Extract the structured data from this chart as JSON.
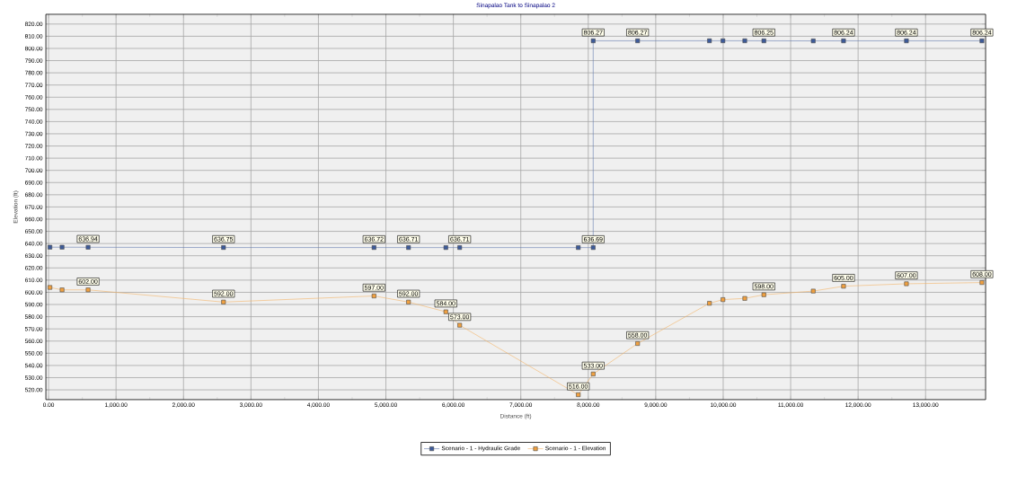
{
  "chart_data": {
    "type": "line",
    "title": "Sinapalao Tank to Sinapalao 2",
    "xlabel": "Distance (ft)",
    "ylabel": "Elevation (ft)",
    "xlim": [
      -40,
      13890
    ],
    "ylim": [
      512,
      828
    ],
    "xticks": [
      {
        "value": 0,
        "label": "0.00"
      },
      {
        "value": 1000,
        "label": "1,000.00"
      },
      {
        "value": 2000,
        "label": "2,000.00"
      },
      {
        "value": 3000,
        "label": "3,000.00"
      },
      {
        "value": 4000,
        "label": "4,000.00"
      },
      {
        "value": 5000,
        "label": "5,000.00"
      },
      {
        "value": 6000,
        "label": "6,000.00"
      },
      {
        "value": 7000,
        "label": "7,000.00"
      },
      {
        "value": 8000,
        "label": "8,000.00"
      },
      {
        "value": 9000,
        "label": "9,000.00"
      },
      {
        "value": 10000,
        "label": "10,000.00"
      },
      {
        "value": 11000,
        "label": "11,000.00"
      },
      {
        "value": 12000,
        "label": "12,000.00"
      },
      {
        "value": 13000,
        "label": "13,000.00"
      }
    ],
    "yticks": [
      {
        "value": 520,
        "label": "520.00"
      },
      {
        "value": 530,
        "label": "530.00"
      },
      {
        "value": 540,
        "label": "540.00"
      },
      {
        "value": 550,
        "label": "550.00"
      },
      {
        "value": 560,
        "label": "560.00"
      },
      {
        "value": 570,
        "label": "570.00"
      },
      {
        "value": 580,
        "label": "580.00"
      },
      {
        "value": 590,
        "label": "590.00"
      },
      {
        "value": 600,
        "label": "600.00"
      },
      {
        "value": 610,
        "label": "610.00"
      },
      {
        "value": 620,
        "label": "620.00"
      },
      {
        "value": 630,
        "label": "630.00"
      },
      {
        "value": 640,
        "label": "640.00"
      },
      {
        "value": 650,
        "label": "650.00"
      },
      {
        "value": 660,
        "label": "660.00"
      },
      {
        "value": 670,
        "label": "670.00"
      },
      {
        "value": 680,
        "label": "680.00"
      },
      {
        "value": 690,
        "label": "690.00"
      },
      {
        "value": 700,
        "label": "700.00"
      },
      {
        "value": 710,
        "label": "710.00"
      },
      {
        "value": 720,
        "label": "720.00"
      },
      {
        "value": 730,
        "label": "730.00"
      },
      {
        "value": 740,
        "label": "740.00"
      },
      {
        "value": 750,
        "label": "750.00"
      },
      {
        "value": 760,
        "label": "760.00"
      },
      {
        "value": 770,
        "label": "770.00"
      },
      {
        "value": 780,
        "label": "780.00"
      },
      {
        "value": 790,
        "label": "790.00"
      },
      {
        "value": 800,
        "label": "800.00"
      },
      {
        "value": 810,
        "label": "810.00"
      },
      {
        "value": 820,
        "label": "820.00"
      }
    ],
    "grid": true,
    "legend": "bottom",
    "marker": "square",
    "line_style": "solid",
    "series": [
      {
        "name": "Scenario - 1 - Hydraulic Grade",
        "color": "#3c5a9a",
        "x": [
          20,
          200,
          586,
          2593,
          4824,
          5335,
          5889,
          6094,
          7852,
          8073,
          8073,
          8731,
          9796,
          9996,
          10320,
          10603,
          11335,
          11784,
          12716,
          13835
        ],
        "values": [
          637,
          637,
          636.94,
          636.75,
          636.72,
          636.71,
          636.7,
          636.71,
          636.7,
          636.69,
          806.27,
          806.27,
          806.3,
          806.3,
          806.3,
          806.25,
          806.2,
          806.24,
          806.24,
          806.24
        ],
        "value_labels": [
          null,
          null,
          "636.94",
          "636.75",
          "636.72",
          "636.71",
          null,
          "636.71",
          null,
          "636.69",
          "806.27",
          "806.27",
          null,
          null,
          null,
          "806.25",
          null,
          "806.24",
          "806.24",
          "806.24"
        ]
      },
      {
        "name": "Scenario - 1 - Elevation",
        "color": "#f0a040",
        "x": [
          20,
          200,
          586,
          2593,
          4824,
          5335,
          5889,
          6094,
          7852,
          8073,
          8731,
          9796,
          9996,
          10320,
          10603,
          11335,
          11784,
          12716,
          13835
        ],
        "values": [
          604,
          602,
          602,
          592,
          597,
          592,
          584,
          573,
          516,
          533,
          558,
          591,
          594,
          595,
          598,
          601,
          605,
          607,
          608
        ],
        "value_labels": [
          null,
          null,
          "602.00",
          "592.00",
          "597.00",
          "592.00",
          "584.00",
          "573.00",
          "516.00",
          "533.00",
          "558.00",
          null,
          null,
          null,
          "598.00",
          null,
          "605.00",
          "607.00",
          "608.00"
        ]
      }
    ]
  }
}
